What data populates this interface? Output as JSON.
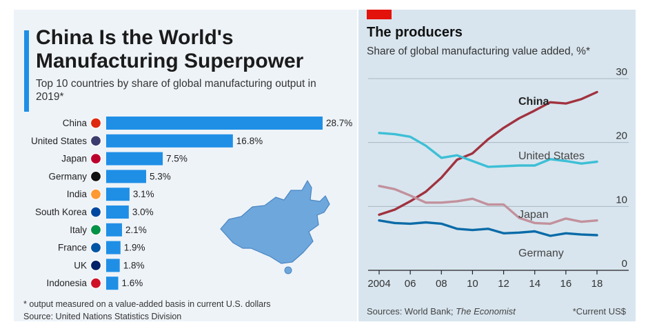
{
  "left_panel": {
    "title_line1": "China Is the World's",
    "title_line2": "Manufacturing Superpower",
    "subtitle": "Top 10 countries by share of global manufacturing output in 2019*",
    "footnote": "* output measured on a value-added basis in current U.S. dollars",
    "source": "Source: United Nations Statistics Division",
    "bar_color": "#1f8fe6"
  },
  "right_panel": {
    "title": "The producers",
    "subtitle": "Share of global manufacturing value added, %*",
    "source_prefix": "Sources: World Bank; ",
    "source_italic": "The Economist",
    "note": "*Current US$"
  },
  "chart_data": [
    {
      "type": "bar",
      "orientation": "horizontal",
      "title": "China Is the World's Manufacturing Superpower",
      "categories": [
        "China",
        "United States",
        "Japan",
        "Germany",
        "India",
        "South Korea",
        "Italy",
        "France",
        "UK",
        "Indonesia"
      ],
      "values": [
        28.7,
        16.8,
        7.5,
        5.3,
        3.1,
        3.0,
        2.1,
        1.9,
        1.8,
        1.6
      ],
      "value_labels": [
        "28.7%",
        "16.8%",
        "7.5%",
        "5.3%",
        "3.1%",
        "3.0%",
        "2.1%",
        "1.9%",
        "1.8%",
        "1.6%"
      ],
      "unit": "%"
    },
    {
      "type": "line",
      "title": "The producers",
      "ylabel": "Share of global manufacturing value added, %*",
      "x": [
        2004,
        2005,
        2006,
        2007,
        2008,
        2009,
        2010,
        2011,
        2012,
        2013,
        2014,
        2015,
        2016,
        2017,
        2018
      ],
      "xtick_values": [
        2004,
        2006,
        2008,
        2010,
        2012,
        2014,
        2016,
        2018
      ],
      "xtick_labels": [
        "2004",
        "06",
        "08",
        "10",
        "12",
        "14",
        "16",
        "18"
      ],
      "ytick_values": [
        0,
        10,
        20,
        30
      ],
      "ytick_labels": [
        "0",
        "10",
        "20",
        "30"
      ],
      "ylim": [
        0,
        30
      ],
      "grid": true,
      "series": [
        {
          "name": "China",
          "color": "#a1323f",
          "values": [
            8.7,
            9.5,
            10.8,
            12.3,
            14.5,
            17.3,
            18.3,
            20.5,
            22.3,
            23.8,
            25.0,
            26.3,
            26.1,
            26.8,
            27.9
          ]
        },
        {
          "name": "United States",
          "color": "#3dbfd6",
          "values": [
            21.5,
            21.3,
            20.9,
            19.5,
            17.6,
            18.0,
            17.1,
            16.2,
            16.3,
            16.4,
            16.4,
            17.4,
            17.1,
            16.7,
            17.0
          ]
        },
        {
          "name": "Japan",
          "color": "#c2919c",
          "values": [
            13.2,
            12.7,
            11.7,
            10.6,
            10.6,
            10.8,
            11.2,
            10.3,
            10.3,
            8.2,
            7.4,
            7.3,
            8.1,
            7.6,
            7.8
          ]
        },
        {
          "name": "Germany",
          "color": "#0b6ba8",
          "values": [
            7.8,
            7.4,
            7.3,
            7.5,
            7.3,
            6.5,
            6.3,
            6.5,
            5.8,
            5.9,
            6.1,
            5.4,
            5.8,
            5.6,
            5.5
          ]
        }
      ]
    }
  ]
}
